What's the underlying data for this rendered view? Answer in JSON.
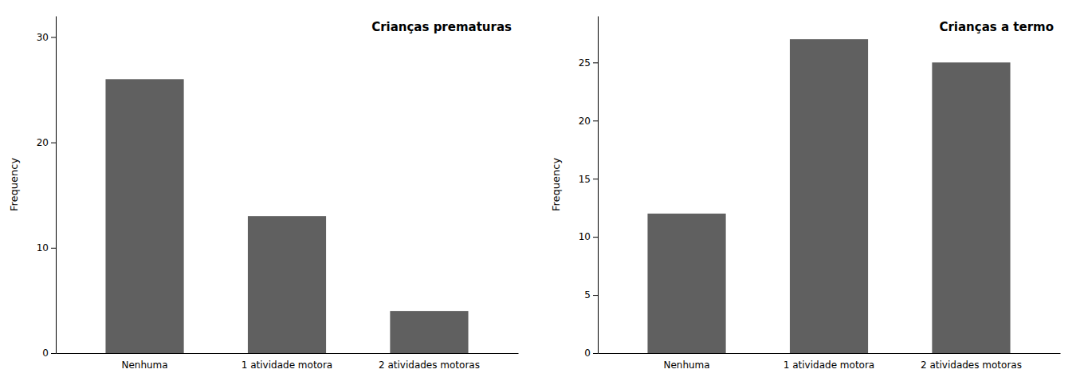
{
  "chart_data": [
    {
      "type": "bar",
      "title": "Crianças prematuras",
      "ylabel": "Frequency",
      "categories": [
        "Nenhuma",
        "1 atividade motora",
        "2 atividades motoras"
      ],
      "values": [
        26,
        13,
        4
      ],
      "color": "#606060",
      "ylim": [
        0,
        32
      ],
      "yticks": [
        0,
        10,
        20,
        30
      ],
      "grid": false
    },
    {
      "type": "bar",
      "title": "Crianças a termo",
      "ylabel": "Frequency",
      "categories": [
        "Nenhuma",
        "1 atividade motora",
        "2 atividades motoras"
      ],
      "values": [
        12,
        27,
        25
      ],
      "color": "#606060",
      "ylim": [
        0,
        29
      ],
      "yticks": [
        0,
        5,
        10,
        15,
        20,
        25
      ],
      "grid": false
    }
  ]
}
